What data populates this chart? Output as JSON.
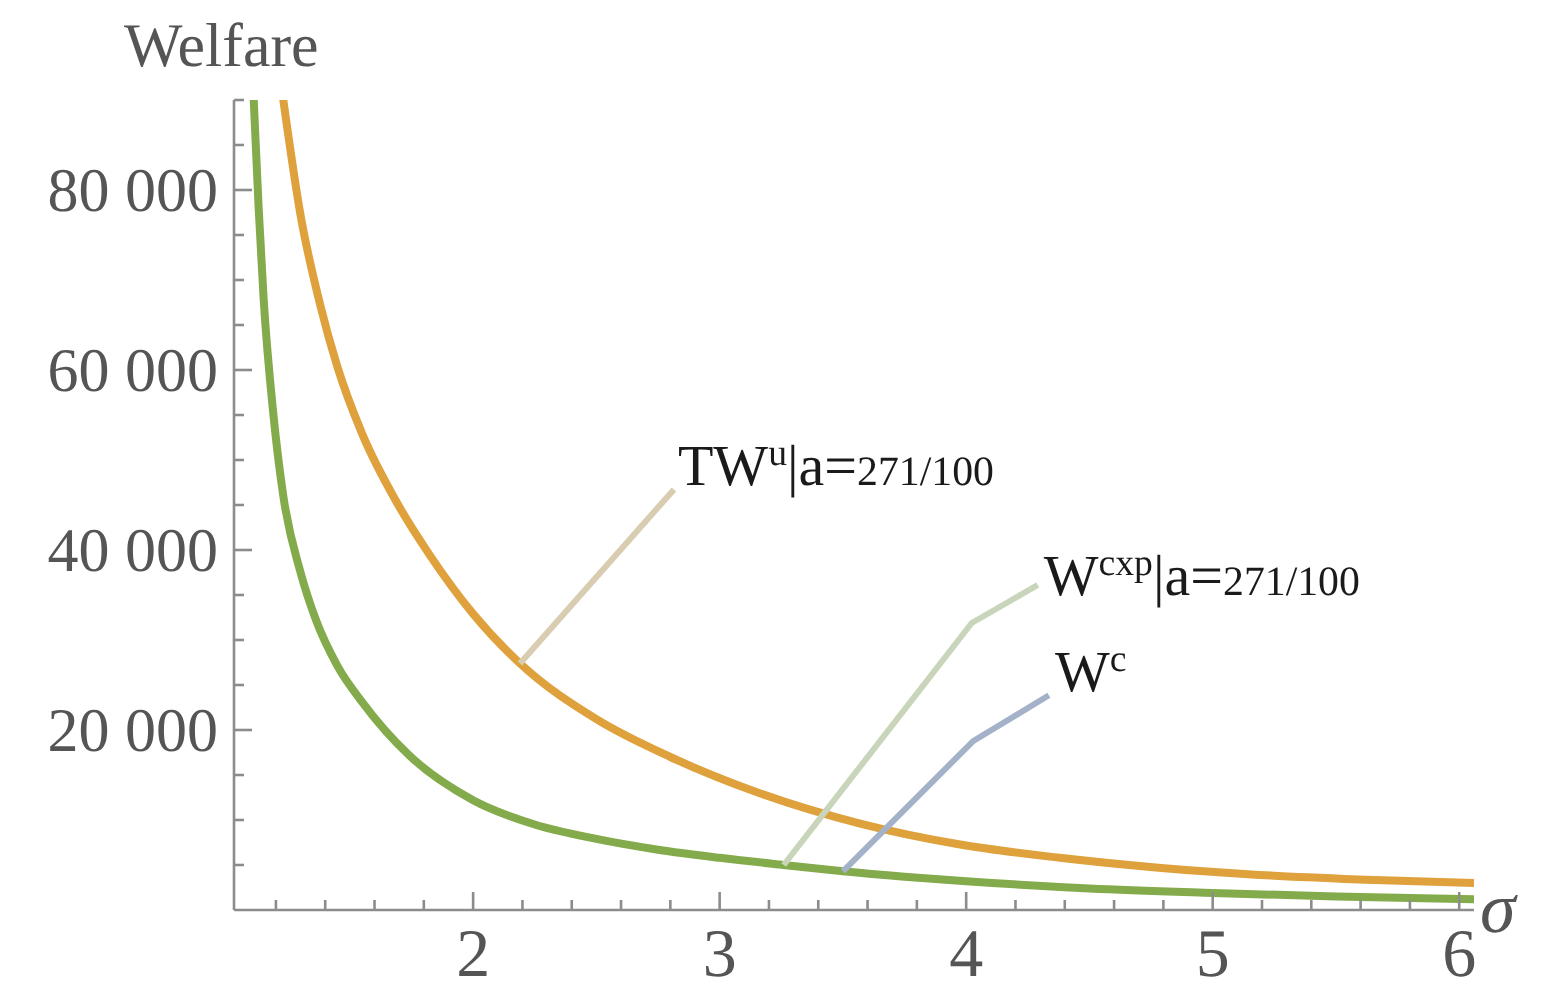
{
  "chart_data": {
    "type": "line",
    "ylabel": "Welfare",
    "xlabel": "σ",
    "annotations": [
      {
        "text": "TW$^{u}$|a=271/100",
        "x": 2.19,
        "y": 27400
      },
      {
        "text": "W$^{cxp}$|a=271/100",
        "x": 3.26,
        "y": 5000
      },
      {
        "text": "W$^{c}$",
        "x": 3.5,
        "y": 4300
      }
    ],
    "series": [
      {
        "color": "#dea13c",
        "x": [
          1.23,
          1.3,
          1.38,
          1.45,
          1.55,
          1.69,
          1.82,
          2.0,
          2.19,
          2.5,
          2.8,
          3.16,
          3.57,
          3.97,
          4.38,
          4.78,
          5.19,
          5.59,
          6.06
        ],
        "values": [
          90000,
          77200,
          67200,
          60300,
          52900,
          45300,
          39600,
          32900,
          27400,
          21200,
          17000,
          13000,
          9600,
          7300,
          5800,
          4700,
          3900,
          3400,
          3000
        ]
      },
      {
        "color": "#84ab4b",
        "x": [
          1.11,
          1.13,
          1.15,
          1.19,
          1.23,
          1.3,
          1.36,
          1.45,
          1.55,
          1.74,
          2.0,
          2.25,
          2.5,
          2.75,
          3.0,
          3.26,
          3.5,
          3.75,
          4.0,
          4.5,
          5.0,
          5.5,
          6.06
        ],
        "values": [
          90000,
          78000,
          68000,
          55000,
          46000,
          37500,
          32400,
          27100,
          23100,
          17200,
          12200,
          9500,
          7900,
          6700,
          5800,
          5000,
          4300,
          3700,
          3200,
          2400,
          1900,
          1500,
          1200
        ]
      }
    ],
    "xlim": [
      1.03,
      6.06
    ],
    "xticks": [
      {
        "value": 1.2,
        "label": null
      },
      {
        "value": 1.4,
        "label": null
      },
      {
        "value": 1.6,
        "label": null
      },
      {
        "value": 1.8,
        "label": null
      },
      2,
      {
        "value": 2.2,
        "label": null
      },
      {
        "value": 2.4,
        "label": null
      },
      {
        "value": 2.6,
        "label": null
      },
      {
        "value": 2.8,
        "label": null
      },
      3,
      {
        "value": 3.2,
        "label": null
      },
      {
        "value": 3.4,
        "label": null
      },
      {
        "value": 3.6,
        "label": null
      },
      {
        "value": 3.8,
        "label": null
      },
      4,
      {
        "value": 4.2,
        "label": null
      },
      {
        "value": 4.4,
        "label": null
      },
      {
        "value": 4.6,
        "label": null
      },
      {
        "value": 4.8,
        "label": null
      },
      5,
      {
        "value": 5.2,
        "label": null
      },
      {
        "value": 5.4,
        "label": null
      },
      {
        "value": 5.6,
        "label": null
      },
      {
        "value": 5.8,
        "label": null
      },
      6
    ],
    "ylim": [
      0,
      90000
    ],
    "yticks": [
      {
        "value": 5000,
        "label": null
      },
      {
        "value": 10000,
        "label": null
      },
      {
        "value": 15000,
        "label": null
      },
      {
        "value": 20000,
        "label": "20 000"
      },
      {
        "value": 25000,
        "label": null
      },
      {
        "value": 30000,
        "label": null
      },
      {
        "value": 35000,
        "label": null
      },
      {
        "value": 40000,
        "label": "40 000"
      },
      {
        "value": 45000,
        "label": null
      },
      {
        "value": 50000,
        "label": null
      },
      {
        "value": 55000,
        "label": null
      },
      {
        "value": 60000,
        "label": "60 000"
      },
      {
        "value": 65000,
        "label": null
      },
      {
        "value": 70000,
        "label": null
      },
      {
        "value": 75000,
        "label": null
      },
      {
        "value": 80000,
        "label": "80 000"
      },
      {
        "value": 85000,
        "label": null
      },
      {
        "value": 90000,
        "label": null
      }
    ]
  }
}
